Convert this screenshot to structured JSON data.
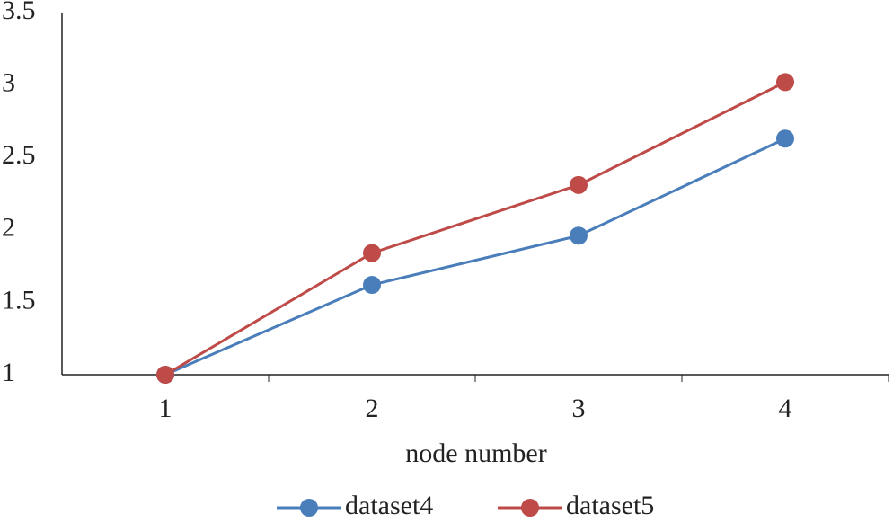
{
  "chart_data": {
    "type": "line",
    "x_label": "node number",
    "categories": [
      "1",
      "2",
      "3",
      "4"
    ],
    "series": [
      {
        "name": "dataset4",
        "color": "#4a7ebb",
        "values": [
          1,
          1.62,
          1.96,
          2.63
        ]
      },
      {
        "name": "dataset5",
        "color": "#be4b48",
        "values": [
          1,
          1.84,
          2.31,
          3.02
        ]
      }
    ],
    "ylim": [
      1,
      3.5
    ],
    "yticks": [
      1,
      1.5,
      2,
      2.5,
      3,
      3.5
    ],
    "grid": false,
    "legend": "bottom"
  }
}
